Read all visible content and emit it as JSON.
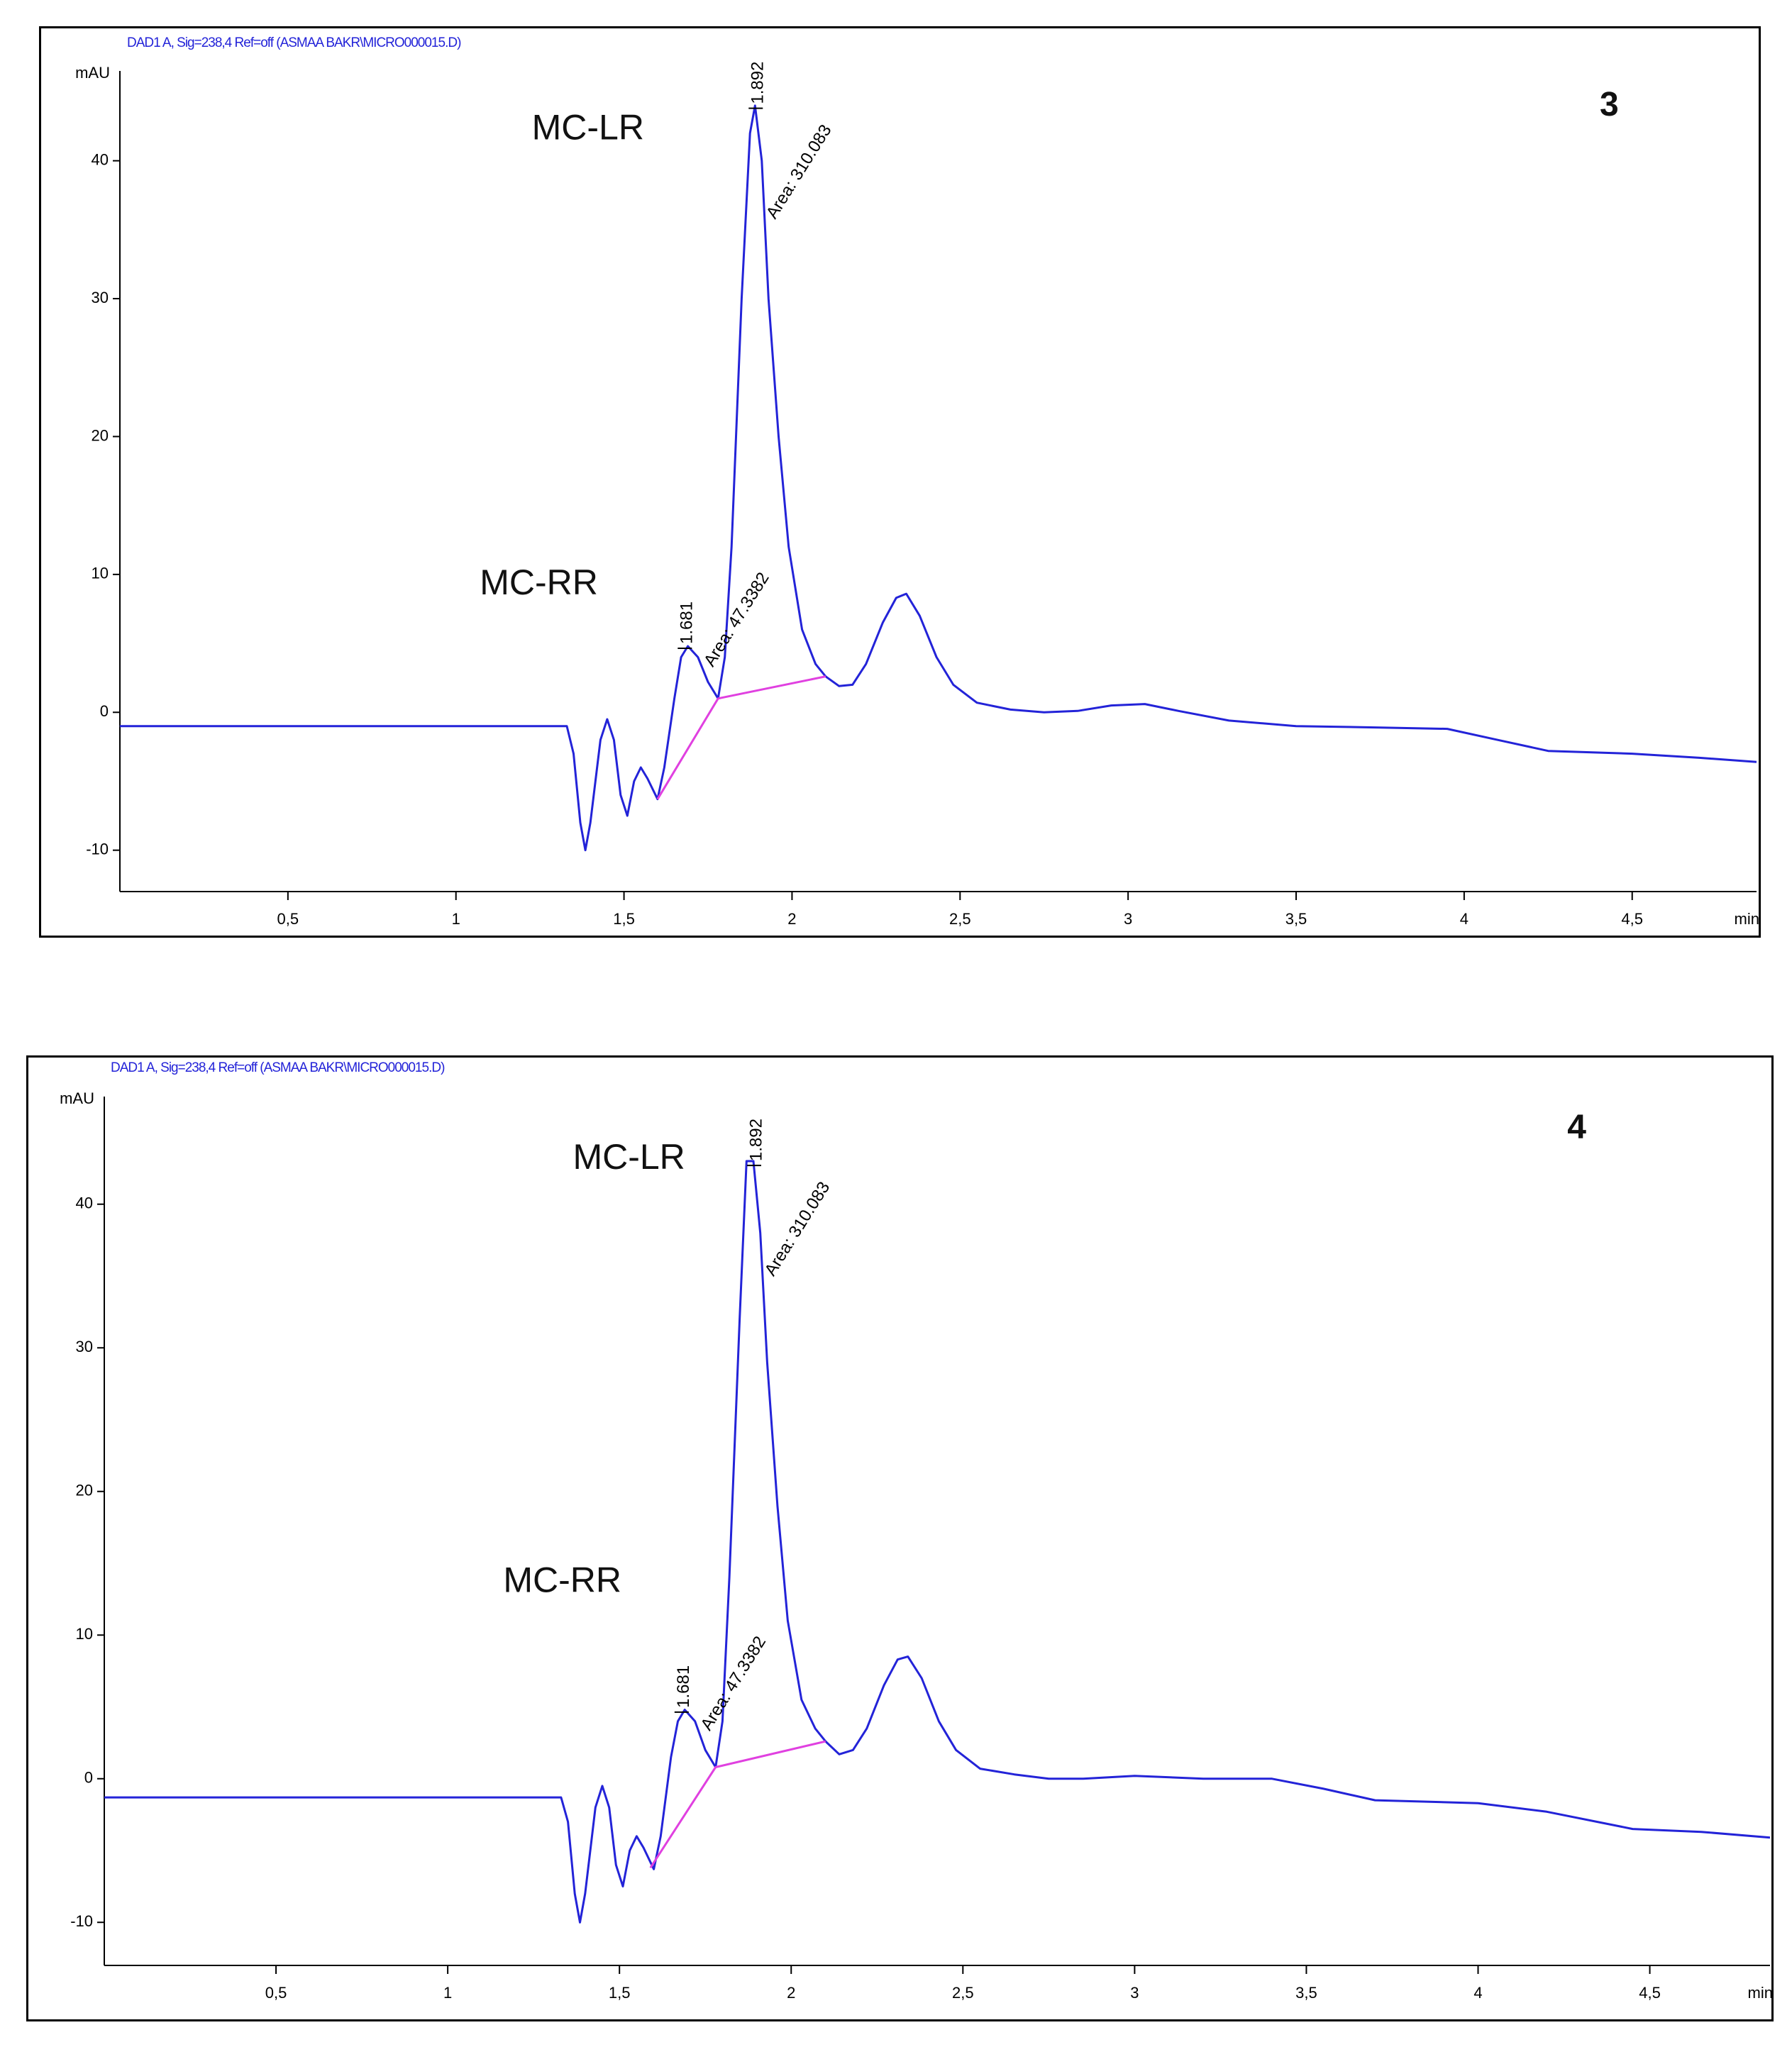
{
  "chart_data": [
    {
      "type": "line",
      "header": "DAD1 A, Sig=238,4 Ref=off (ASMAA BAKR\\MICRO000015.D)",
      "title": "3",
      "annotations": [
        "MC-LR",
        "MC-RR"
      ],
      "ylabel": "mAU",
      "xlabel": "min",
      "xlim": [
        0,
        4.87
      ],
      "ylim": [
        -13,
        46
      ],
      "xticks": [
        {
          "value": 0.5,
          "label": "0,5"
        },
        1,
        {
          "value": 1.5,
          "label": "1,5"
        },
        2,
        {
          "value": 2.5,
          "label": "2,5"
        },
        3,
        {
          "value": 3.5,
          "label": "3,5"
        },
        4,
        {
          "value": 4.5,
          "label": "4,5"
        }
      ],
      "yticks": [
        -10,
        0,
        10,
        20,
        30,
        40
      ],
      "peaks": [
        {
          "rt": 1.681,
          "area": "Area: 47.3382"
        },
        {
          "rt": 1.892,
          "area": "Area: 310.083"
        }
      ],
      "series": [
        {
          "color": "#2323d8",
          "x": [
            0,
            1.33,
            1.35,
            1.37,
            1.385,
            1.4,
            1.43,
            1.45,
            1.47,
            1.49,
            1.51,
            1.53,
            1.55,
            1.57,
            1.6,
            1.62,
            1.65,
            1.67,
            1.69,
            1.72,
            1.75,
            1.78,
            1.8,
            1.82,
            1.85,
            1.875,
            1.89,
            1.91,
            1.93,
            1.96,
            1.99,
            2.03,
            2.07,
            2.1,
            2.14,
            2.18,
            2.22,
            2.27,
            2.31,
            2.34,
            2.38,
            2.43,
            2.48,
            2.55,
            2.65,
            2.75,
            2.85,
            2.95,
            3.05,
            3.15,
            3.3,
            3.5,
            3.75,
            3.95,
            4.1,
            4.25,
            4.5,
            4.7,
            4.87
          ],
          "values": [
            -1,
            -1,
            -3,
            -8,
            -10,
            -8,
            -2,
            -0.5,
            -2,
            -6,
            -7.5,
            -5,
            -4,
            -4.8,
            -6.3,
            -4,
            1,
            4,
            4.8,
            4,
            2.2,
            1,
            4,
            12,
            30,
            42,
            44,
            40,
            30,
            20,
            12,
            6,
            3.5,
            2.6,
            1.9,
            2,
            3.5,
            6.5,
            8.3,
            8.6,
            7,
            4,
            2,
            0.7,
            0.2,
            0,
            0.1,
            0.5,
            0.6,
            0.1,
            -0.6,
            -1,
            -1.1,
            -1.2,
            -2,
            -2.8,
            -3,
            -3.3,
            -3.6
          ]
        },
        {
          "color": "#e040e0",
          "x": [
            1.6,
            1.78,
            2.1
          ],
          "values": [
            -6.3,
            1,
            2.6
          ]
        }
      ]
    },
    {
      "type": "line",
      "header": "DAD1 A, Sig=238,4 Ref=off (ASMAA BAKR\\MICRO000015.D)",
      "title": "4",
      "annotations": [
        "MC-LR",
        "MC-RR"
      ],
      "ylabel": "mAU",
      "xlabel": "min",
      "xlim": [
        0,
        4.85
      ],
      "ylim": [
        -13,
        47
      ],
      "xticks": [
        {
          "value": 0.5,
          "label": "0,5"
        },
        1,
        {
          "value": 1.5,
          "label": "1,5"
        },
        2,
        {
          "value": 2.5,
          "label": "2,5"
        },
        3,
        {
          "value": 3.5,
          "label": "3,5"
        },
        4,
        {
          "value": 4.5,
          "label": "4,5"
        }
      ],
      "yticks": [
        -10,
        0,
        10,
        20,
        30,
        40
      ],
      "peaks": [
        {
          "rt": 1.681,
          "area": "Area: 47.3382"
        },
        {
          "rt": 1.892,
          "area": "Area: 310.083"
        }
      ],
      "series": [
        {
          "color": "#2323d8",
          "x": [
            0,
            1.33,
            1.35,
            1.37,
            1.385,
            1.4,
            1.43,
            1.45,
            1.47,
            1.49,
            1.51,
            1.53,
            1.55,
            1.57,
            1.6,
            1.62,
            1.65,
            1.67,
            1.69,
            1.72,
            1.75,
            1.78,
            1.8,
            1.82,
            1.85,
            1.87,
            1.89,
            1.91,
            1.93,
            1.96,
            1.99,
            2.03,
            2.07,
            2.1,
            2.14,
            2.18,
            2.22,
            2.27,
            2.31,
            2.34,
            2.38,
            2.43,
            2.48,
            2.55,
            2.65,
            2.75,
            2.85,
            3.0,
            3.2,
            3.4,
            3.55,
            3.7,
            4.0,
            4.2,
            4.45,
            4.65,
            4.85
          ],
          "values": [
            -1.3,
            -1.3,
            -3,
            -8,
            -10,
            -8,
            -2,
            -0.5,
            -2,
            -6,
            -7.5,
            -5,
            -4,
            -4.8,
            -6.3,
            -4,
            1.5,
            4,
            4.8,
            4,
            2,
            0.8,
            4,
            14,
            32,
            43,
            43,
            38,
            29,
            19,
            11,
            5.5,
            3.5,
            2.6,
            1.7,
            2,
            3.5,
            6.5,
            8.3,
            8.5,
            7,
            4,
            2,
            0.7,
            0.3,
            0,
            0,
            0.2,
            0,
            0,
            -0.7,
            -1.5,
            -1.7,
            -2.3,
            -3.5,
            -3.7,
            -4.1
          ]
        },
        {
          "color": "#e040e0",
          "x": [
            1.59,
            1.78,
            2.1
          ],
          "values": [
            -6.2,
            0.8,
            2.6
          ]
        }
      ]
    }
  ]
}
